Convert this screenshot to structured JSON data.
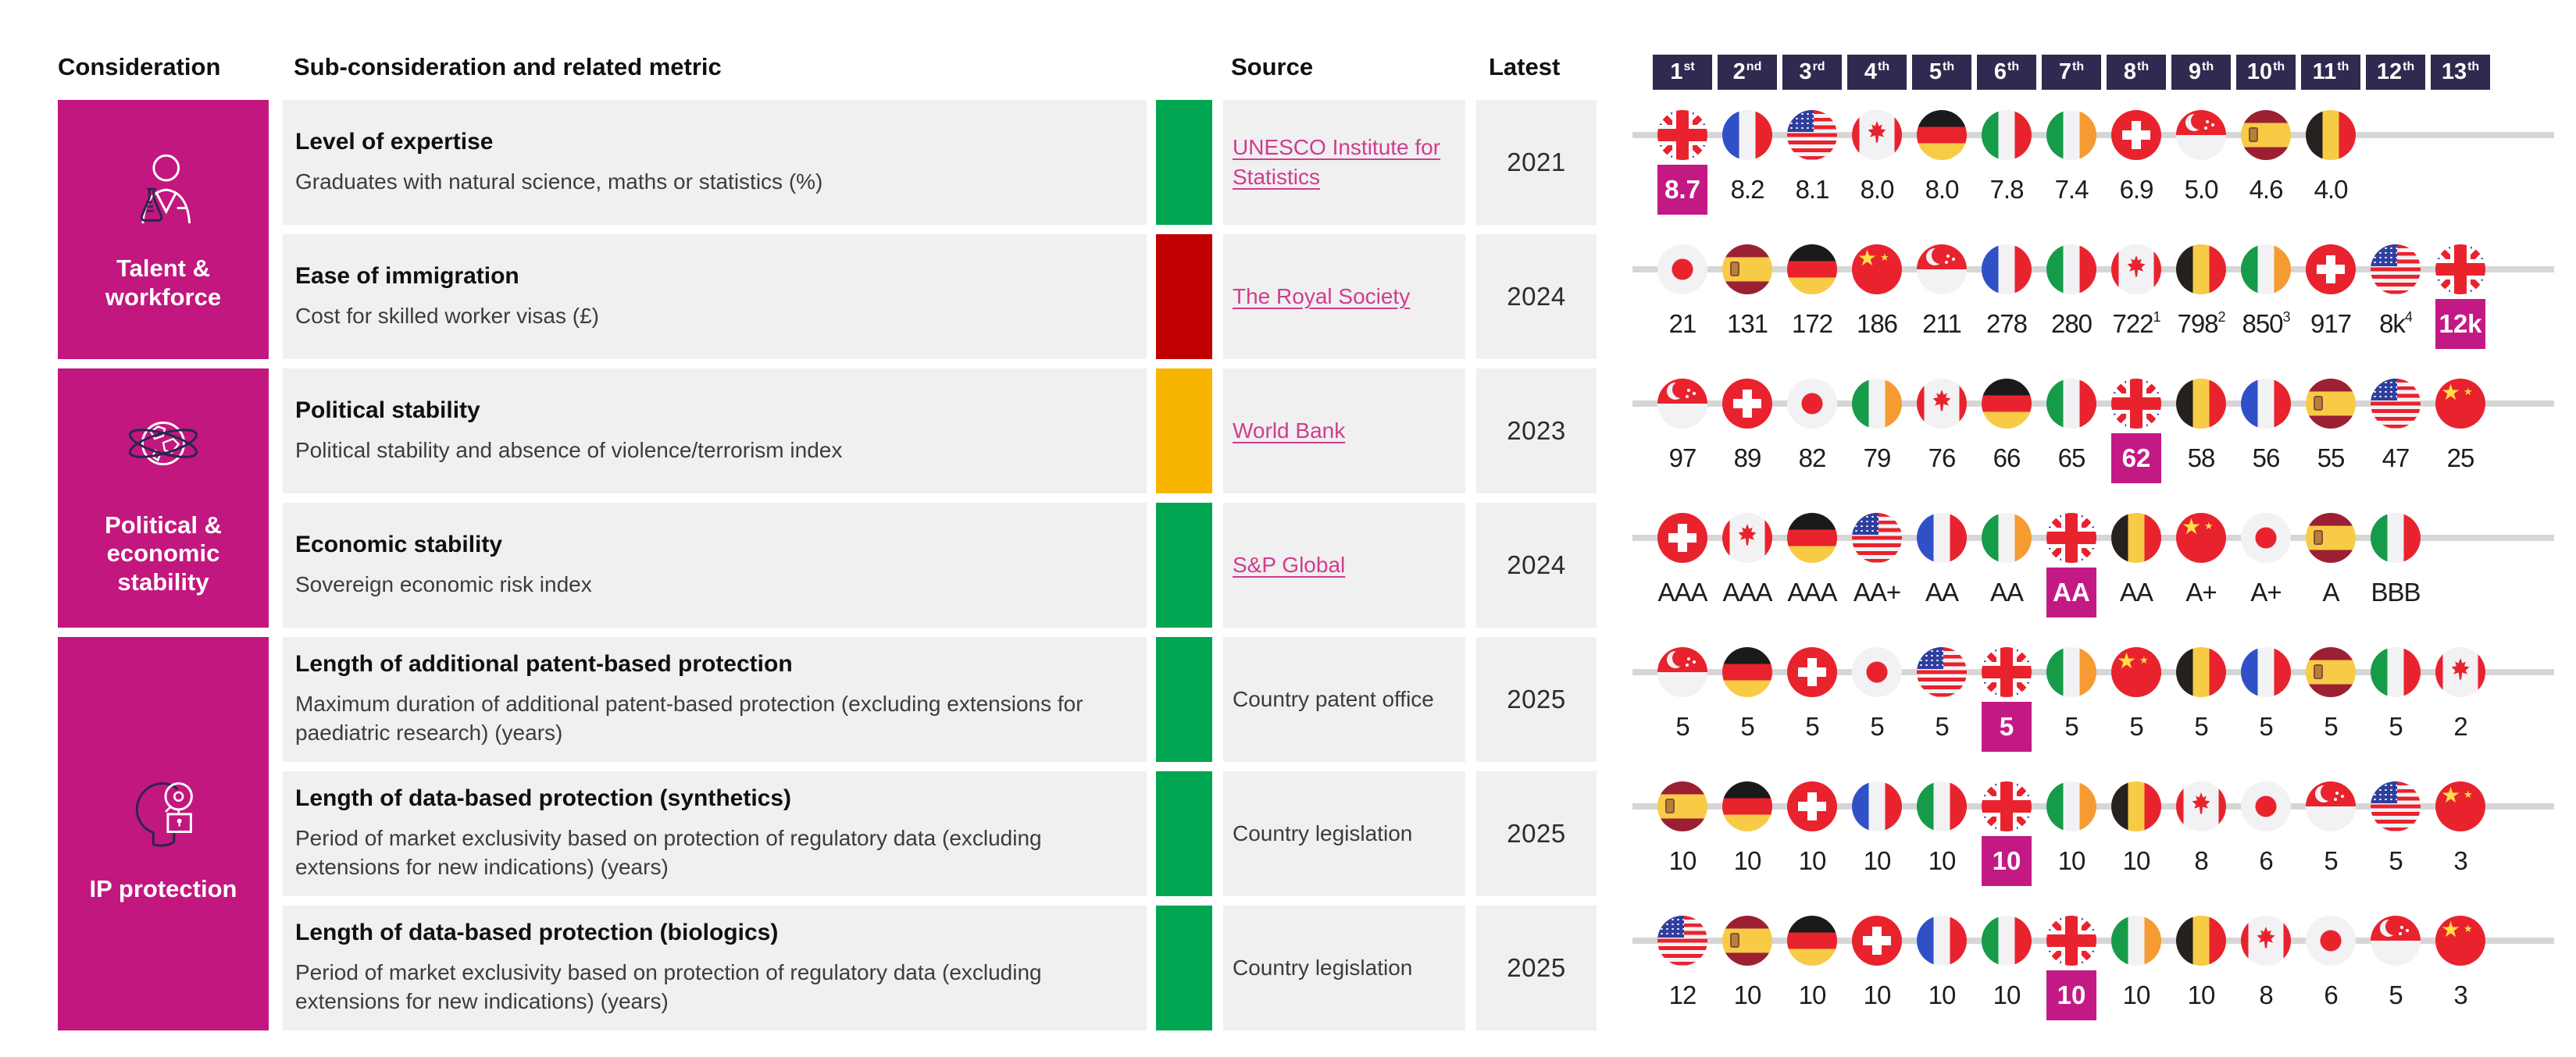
{
  "header": {
    "consideration": "Consideration",
    "sub_consideration": "Sub-consideration and related metric",
    "source": "Source",
    "latest": "Latest",
    "ranks": [
      {
        "num": "1",
        "suffix": "st"
      },
      {
        "num": "2",
        "suffix": "nd"
      },
      {
        "num": "3",
        "suffix": "rd"
      },
      {
        "num": "4",
        "suffix": "th"
      },
      {
        "num": "5",
        "suffix": "th"
      },
      {
        "num": "6",
        "suffix": "th"
      },
      {
        "num": "7",
        "suffix": "th"
      },
      {
        "num": "8",
        "suffix": "th"
      },
      {
        "num": "9",
        "suffix": "th"
      },
      {
        "num": "10",
        "suffix": "th"
      },
      {
        "num": "11",
        "suffix": "th"
      },
      {
        "num": "12",
        "suffix": "th"
      },
      {
        "num": "13",
        "suffix": "th"
      }
    ]
  },
  "colors": {
    "magenta": "#C2177E",
    "highlight": "#C31985",
    "badge_navy": "#322950",
    "green": "#00A651",
    "red": "#C00000",
    "amber": "#F7B500",
    "cell_bg": "#F0F0F0",
    "line_gray": "#D6D6D6",
    "link_pink": "#D13C8E"
  },
  "groups": [
    {
      "label": "Talent & workforce",
      "icon": "talent-flask-icon",
      "row_indexes": [
        0,
        1
      ]
    },
    {
      "label": "Political & economic stability",
      "icon": "globe-orbit-icon",
      "row_indexes": [
        2,
        3
      ]
    },
    {
      "label": "IP protection",
      "icon": "head-idea-lock-icon",
      "row_indexes": [
        4,
        5,
        6
      ]
    }
  ],
  "chart_data": {
    "type": "table",
    "rows": [
      {
        "title": "Level of expertise",
        "metric": "Graduates with natural science, maths or statistics (%)",
        "rag": "green",
        "source": {
          "text": "UNESCO Institute for Statistics",
          "link": true
        },
        "latest": "2021",
        "ranking": [
          {
            "country": "United Kingdom",
            "code": "gb",
            "value": "8.7",
            "highlight": true
          },
          {
            "country": "France",
            "code": "fr",
            "value": "8.2"
          },
          {
            "country": "United States",
            "code": "us",
            "value": "8.1"
          },
          {
            "country": "Canada",
            "code": "ca",
            "value": "8.0"
          },
          {
            "country": "Germany",
            "code": "de",
            "value": "8.0"
          },
          {
            "country": "Italy",
            "code": "it",
            "value": "7.8"
          },
          {
            "country": "Ireland",
            "code": "ie",
            "value": "7.4"
          },
          {
            "country": "Switzerland",
            "code": "ch",
            "value": "6.9"
          },
          {
            "country": "Singapore",
            "code": "sg",
            "value": "5.0"
          },
          {
            "country": "Spain",
            "code": "es",
            "value": "4.6"
          },
          {
            "country": "Belgium",
            "code": "be",
            "value": "4.0"
          }
        ]
      },
      {
        "title": "Ease of immigration",
        "metric": "Cost for skilled worker visas (£)",
        "rag": "red",
        "source": {
          "text": "The Royal Society",
          "link": true
        },
        "latest": "2024",
        "ranking": [
          {
            "country": "Japan",
            "code": "jp",
            "value": "21"
          },
          {
            "country": "Spain",
            "code": "es",
            "value": "131"
          },
          {
            "country": "Germany",
            "code": "de",
            "value": "172"
          },
          {
            "country": "China",
            "code": "cn",
            "value": "186"
          },
          {
            "country": "Singapore",
            "code": "sg",
            "value": "211"
          },
          {
            "country": "France",
            "code": "fr",
            "value": "278"
          },
          {
            "country": "Italy",
            "code": "it",
            "value": "280"
          },
          {
            "country": "Canada",
            "code": "ca",
            "value": "722",
            "sup": "1"
          },
          {
            "country": "Belgium",
            "code": "be",
            "value": "798",
            "sup": "2"
          },
          {
            "country": "Ireland",
            "code": "ie",
            "value": "850",
            "sup": "3"
          },
          {
            "country": "Switzerland",
            "code": "ch",
            "value": "917"
          },
          {
            "country": "United States",
            "code": "us",
            "value": "8k",
            "sup": "4"
          },
          {
            "country": "United Kingdom",
            "code": "gb",
            "value": "12k",
            "highlight": true
          }
        ]
      },
      {
        "title": "Political stability",
        "metric": "Political stability and absence of violence/terrorism index",
        "rag": "amber",
        "source": {
          "text": "World Bank",
          "link": true
        },
        "latest": "2023",
        "ranking": [
          {
            "country": "Singapore",
            "code": "sg",
            "value": "97"
          },
          {
            "country": "Switzerland",
            "code": "ch",
            "value": "89"
          },
          {
            "country": "Japan",
            "code": "jp",
            "value": "82"
          },
          {
            "country": "Ireland",
            "code": "ie",
            "value": "79"
          },
          {
            "country": "Canada",
            "code": "ca",
            "value": "76"
          },
          {
            "country": "Germany",
            "code": "de",
            "value": "66"
          },
          {
            "country": "Italy",
            "code": "it",
            "value": "65"
          },
          {
            "country": "United Kingdom",
            "code": "gb",
            "value": "62",
            "highlight": true
          },
          {
            "country": "Belgium",
            "code": "be",
            "value": "58"
          },
          {
            "country": "France",
            "code": "fr",
            "value": "56"
          },
          {
            "country": "Spain",
            "code": "es",
            "value": "55"
          },
          {
            "country": "United States",
            "code": "us",
            "value": "47"
          },
          {
            "country": "China",
            "code": "cn",
            "value": "25"
          }
        ]
      },
      {
        "title": "Economic stability",
        "metric": "Sovereign economic risk index",
        "rag": "green",
        "source": {
          "text": "S&P Global",
          "link": true
        },
        "latest": "2024",
        "ranking": [
          {
            "country": "Switzerland",
            "code": "ch",
            "value": "AAA"
          },
          {
            "country": "Canada",
            "code": "ca",
            "value": "AAA"
          },
          {
            "country": "Germany",
            "code": "de",
            "value": "AAA"
          },
          {
            "country": "United States",
            "code": "us",
            "value": "AA+"
          },
          {
            "country": "France",
            "code": "fr",
            "value": "AA"
          },
          {
            "country": "Ireland",
            "code": "ie",
            "value": "AA"
          },
          {
            "country": "United Kingdom",
            "code": "gb",
            "value": "AA",
            "highlight": true
          },
          {
            "country": "Belgium",
            "code": "be",
            "value": "AA"
          },
          {
            "country": "China",
            "code": "cn",
            "value": "A+"
          },
          {
            "country": "Japan",
            "code": "jp",
            "value": "A+"
          },
          {
            "country": "Spain",
            "code": "es",
            "value": "A"
          },
          {
            "country": "Italy",
            "code": "it",
            "value": "BBB"
          }
        ]
      },
      {
        "title": "Length of additional patent-based protection",
        "metric": "Maximum duration of additional patent-based protection (excluding extensions for paediatric research) (years)",
        "rag": "green",
        "source": {
          "text": "Country patent office",
          "link": false
        },
        "latest": "2025",
        "ranking": [
          {
            "country": "Singapore",
            "code": "sg",
            "value": "5"
          },
          {
            "country": "Germany",
            "code": "de",
            "value": "5"
          },
          {
            "country": "Switzerland",
            "code": "ch",
            "value": "5"
          },
          {
            "country": "Japan",
            "code": "jp",
            "value": "5"
          },
          {
            "country": "United States",
            "code": "us",
            "value": "5"
          },
          {
            "country": "United Kingdom",
            "code": "gb",
            "value": "5",
            "highlight": true
          },
          {
            "country": "Ireland",
            "code": "ie",
            "value": "5"
          },
          {
            "country": "China",
            "code": "cn",
            "value": "5"
          },
          {
            "country": "Belgium",
            "code": "be",
            "value": "5"
          },
          {
            "country": "France",
            "code": "fr",
            "value": "5"
          },
          {
            "country": "Spain",
            "code": "es",
            "value": "5"
          },
          {
            "country": "Italy",
            "code": "it",
            "value": "5"
          },
          {
            "country": "Canada",
            "code": "ca",
            "value": "2"
          }
        ]
      },
      {
        "title": "Length of data-based protection (synthetics)",
        "metric": "Period of market exclusivity based on protection of regulatory data (excluding extensions for new indications) (years)",
        "rag": "green",
        "source": {
          "text": "Country legislation",
          "link": false
        },
        "latest": "2025",
        "ranking": [
          {
            "country": "Spain",
            "code": "es",
            "value": "10"
          },
          {
            "country": "Germany",
            "code": "de",
            "value": "10"
          },
          {
            "country": "Switzerland",
            "code": "ch",
            "value": "10"
          },
          {
            "country": "France",
            "code": "fr",
            "value": "10"
          },
          {
            "country": "Italy",
            "code": "it",
            "value": "10"
          },
          {
            "country": "United Kingdom",
            "code": "gb",
            "value": "10",
            "highlight": true
          },
          {
            "country": "Ireland",
            "code": "ie",
            "value": "10"
          },
          {
            "country": "Belgium",
            "code": "be",
            "value": "10"
          },
          {
            "country": "Canada",
            "code": "ca",
            "value": "8"
          },
          {
            "country": "Japan",
            "code": "jp",
            "value": "6"
          },
          {
            "country": "Singapore",
            "code": "sg",
            "value": "5"
          },
          {
            "country": "United States",
            "code": "us",
            "value": "5"
          },
          {
            "country": "China",
            "code": "cn",
            "value": "3"
          }
        ]
      },
      {
        "title": "Length of data-based protection (biologics)",
        "metric": "Period of market exclusivity based on protection of regulatory data (excluding extensions for new indications) (years)",
        "rag": "green",
        "source": {
          "text": "Country legislation",
          "link": false
        },
        "latest": "2025",
        "ranking": [
          {
            "country": "United States",
            "code": "us",
            "value": "12"
          },
          {
            "country": "Spain",
            "code": "es",
            "value": "10"
          },
          {
            "country": "Germany",
            "code": "de",
            "value": "10"
          },
          {
            "country": "Switzerland",
            "code": "ch",
            "value": "10"
          },
          {
            "country": "France",
            "code": "fr",
            "value": "10"
          },
          {
            "country": "Italy",
            "code": "it",
            "value": "10"
          },
          {
            "country": "United Kingdom",
            "code": "gb",
            "value": "10",
            "highlight": true
          },
          {
            "country": "Ireland",
            "code": "ie",
            "value": "10"
          },
          {
            "country": "Belgium",
            "code": "be",
            "value": "10"
          },
          {
            "country": "Canada",
            "code": "ca",
            "value": "8"
          },
          {
            "country": "Japan",
            "code": "jp",
            "value": "6"
          },
          {
            "country": "Singapore",
            "code": "sg",
            "value": "5"
          },
          {
            "country": "China",
            "code": "cn",
            "value": "3"
          }
        ]
      }
    ]
  }
}
